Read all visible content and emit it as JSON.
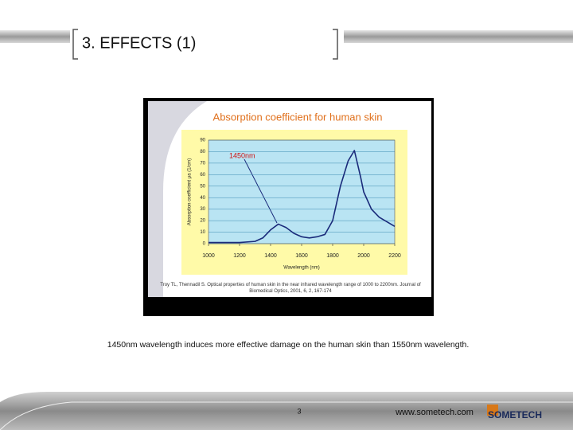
{
  "slide": {
    "title": "3. EFFECTS (1)",
    "caption": "1450nm wavelength induces more effective damage on the human skin than 1550nm wavelength.",
    "page_number": "3",
    "url": "www.sometech.com",
    "logo": "SOMETECH"
  },
  "chart_data": {
    "type": "line",
    "title": "Absorption coefficient for human skin",
    "xlabel": "Wavelength (nm)",
    "ylabel": "Absorption coefficient μa (1/cm)",
    "annotation": "1450nm",
    "source": "Troy TL, Thennadil S. Optical properties of human skin in the near infrared wavelength range of 1000 to 2200nm. Journal of Biomedical Optics, 2001, 6, 2, 167-174",
    "x": [
      1000,
      1100,
      1200,
      1300,
      1350,
      1400,
      1450,
      1500,
      1550,
      1600,
      1650,
      1700,
      1750,
      1800,
      1850,
      1900,
      1940,
      1980,
      2000,
      2050,
      2100,
      2150,
      2200
    ],
    "values": [
      1,
      1,
      1,
      2,
      5,
      12,
      17,
      14,
      9,
      6,
      5,
      6,
      8,
      20,
      50,
      72,
      81,
      58,
      45,
      30,
      23,
      19,
      15
    ],
    "color": "#1a2a7a",
    "xlim": [
      1000,
      2200
    ],
    "xticks": [
      1000,
      1200,
      1400,
      1600,
      1800,
      2000,
      2200
    ],
    "ylim": [
      0,
      90
    ],
    "yticks": [
      0,
      10,
      20,
      30,
      40,
      50,
      60,
      70,
      80,
      90
    ],
    "grid": true
  }
}
